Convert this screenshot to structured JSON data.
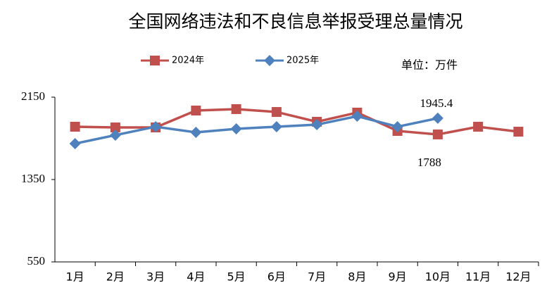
{
  "chart_data": {
    "type": "line",
    "title": "全国网络违法和不良信息举报受理总量情况",
    "unit": "单位：万件",
    "categories": [
      "1月",
      "2月",
      "3月",
      "4月",
      "5月",
      "6月",
      "7月",
      "8月",
      "9月",
      "10月",
      "11月",
      "12月"
    ],
    "series": [
      {
        "name": "2024年",
        "color": "#c0504d",
        "marker": "square",
        "values": [
          1863,
          1856,
          1856,
          2020,
          2034,
          2006,
          1911,
          2000,
          1822,
          1788,
          1863,
          1815
        ]
      },
      {
        "name": "2025年",
        "color": "#4f81bd",
        "marker": "diamond",
        "values": [
          1699,
          1781,
          1863,
          1808,
          1842,
          1863,
          1883,
          1965,
          1863,
          1945.4,
          null,
          null
        ]
      }
    ],
    "ylim": [
      550,
      2150
    ],
    "yticks": [
      550,
      1350,
      2150
    ],
    "grid": false,
    "legend": "top"
  }
}
